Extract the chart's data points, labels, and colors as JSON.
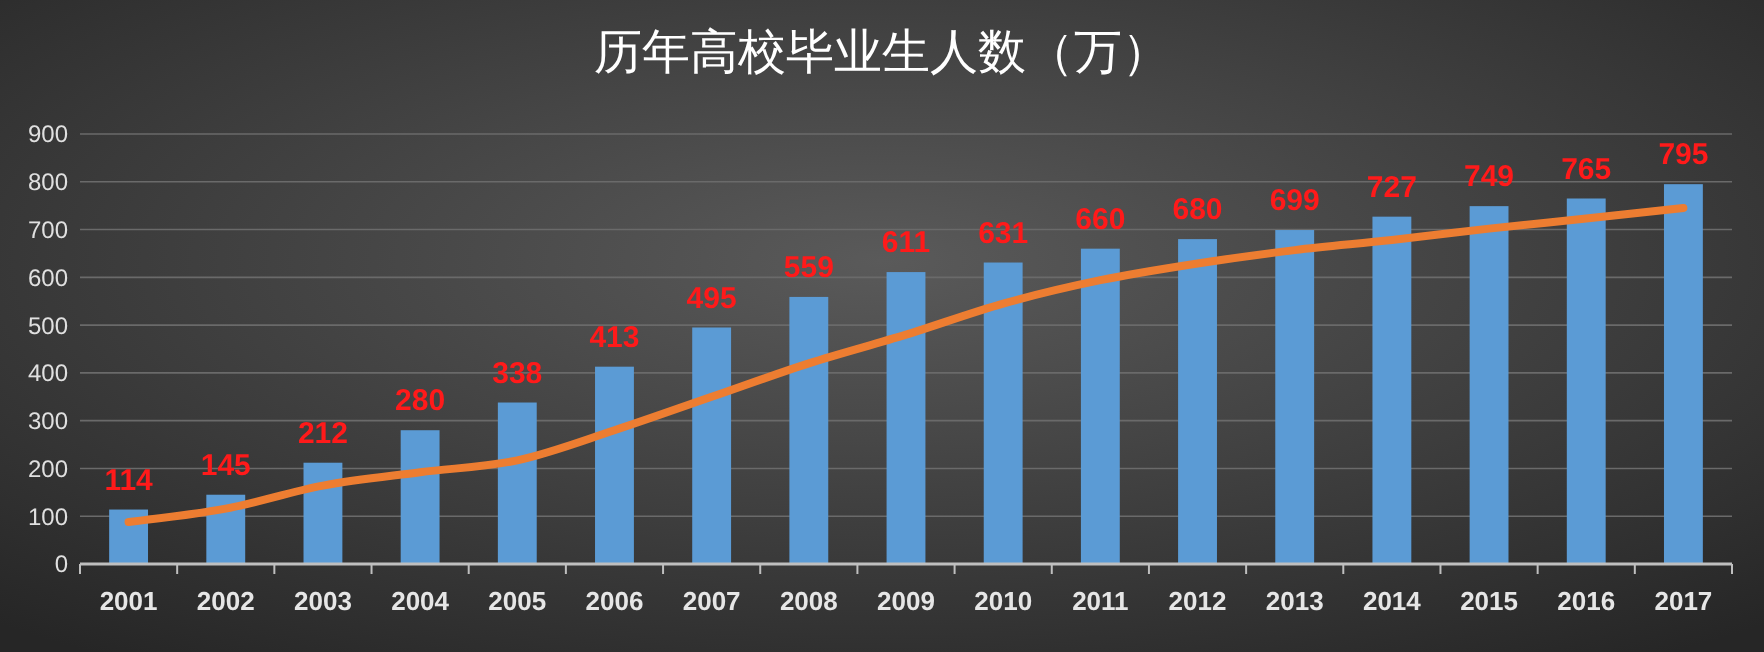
{
  "chart_data": {
    "type": "bar",
    "title": "历年高校毕业生人数（万）",
    "categories": [
      "2001",
      "2002",
      "2003",
      "2004",
      "2005",
      "2006",
      "2007",
      "2008",
      "2009",
      "2010",
      "2011",
      "2012",
      "2013",
      "2014",
      "2015",
      "2016",
      "2017"
    ],
    "series": [
      {
        "color": "#5b9bd5",
        "values": [
          114,
          145,
          212,
          280,
          338,
          413,
          495,
          559,
          611,
          631,
          660,
          680,
          699,
          727,
          749,
          765,
          795
        ],
        "value_labels": [
          "114",
          "145",
          "212",
          "280",
          "338",
          "413",
          "495",
          "559",
          "611",
          "631",
          "660",
          "680",
          "699",
          "727",
          "749",
          "765",
          "795"
        ]
      },
      {
        "type": "line",
        "color": "#ed7d31",
        "values": [
          88,
          116,
          164,
          192,
          217,
          280,
          350,
          420,
          480,
          545,
          594,
          629,
          657,
          678,
          702,
          723,
          745
        ]
      }
    ],
    "ylim": [
      0,
      900
    ],
    "yticks": [
      0,
      100,
      200,
      300,
      400,
      500,
      600,
      700,
      800,
      900
    ],
    "grid": "y"
  }
}
